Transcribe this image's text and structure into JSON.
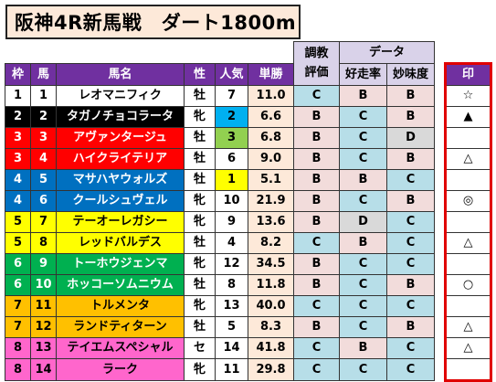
{
  "title": "阪神4R新馬戦　ダート1800m",
  "header": {
    "waku": "枠",
    "uma": "馬",
    "bamei": "馬名",
    "sei": "性",
    "ninki": "人気",
    "tansho": "単勝",
    "chokyo": "調教",
    "hyoka": "評価",
    "data": "データ",
    "kosoritsu": "好走率",
    "myomido": "妙味度",
    "shirushi": "印"
  },
  "rows": [
    {
      "waku": "1",
      "uma": "1",
      "name": "レオマニフィク",
      "sex": "牡",
      "pop": "7",
      "odds": "11.0",
      "chokyo": "C",
      "kosoritsu": "B",
      "myomido": "B",
      "mark": "☆"
    },
    {
      "waku": "2",
      "uma": "2",
      "name": "タガノチョコラータ",
      "sex": "牝",
      "pop": "2",
      "odds": "6.6",
      "chokyo": "B",
      "kosoritsu": "C",
      "myomido": "B",
      "mark": "▲"
    },
    {
      "waku": "3",
      "uma": "3",
      "name": "アヴァンタージュ",
      "sex": "牡",
      "pop": "3",
      "odds": "6.8",
      "chokyo": "B",
      "kosoritsu": "C",
      "myomido": "D",
      "mark": ""
    },
    {
      "waku": "3",
      "uma": "4",
      "name": "ハイクライテリア",
      "sex": "牡",
      "pop": "6",
      "odds": "9.0",
      "chokyo": "B",
      "kosoritsu": "C",
      "myomido": "B",
      "mark": "△"
    },
    {
      "waku": "4",
      "uma": "5",
      "name": "マサハヤウォルズ",
      "sex": "牡",
      "pop": "1",
      "odds": "5.1",
      "chokyo": "B",
      "kosoritsu": "B",
      "myomido": "C",
      "mark": ""
    },
    {
      "waku": "4",
      "uma": "6",
      "name": "クールシュヴェル",
      "sex": "牝",
      "pop": "10",
      "odds": "21.9",
      "chokyo": "B",
      "kosoritsu": "C",
      "myomido": "B",
      "mark": "◎"
    },
    {
      "waku": "5",
      "uma": "7",
      "name": "テーオーレガシー",
      "sex": "牝",
      "pop": "9",
      "odds": "13.6",
      "chokyo": "B",
      "kosoritsu": "D",
      "myomido": "C",
      "mark": ""
    },
    {
      "waku": "5",
      "uma": "8",
      "name": "レッドバルデス",
      "sex": "牡",
      "pop": "4",
      "odds": "8.2",
      "chokyo": "C",
      "kosoritsu": "B",
      "myomido": "C",
      "mark": "△"
    },
    {
      "waku": "6",
      "uma": "9",
      "name": "トーホウジェンマ",
      "sex": "牝",
      "pop": "12",
      "odds": "34.5",
      "chokyo": "B",
      "kosoritsu": "C",
      "myomido": "C",
      "mark": ""
    },
    {
      "waku": "6",
      "uma": "10",
      "name": "ホッコーソムニウム",
      "sex": "牡",
      "pop": "8",
      "odds": "11.8",
      "chokyo": "B",
      "kosoritsu": "C",
      "myomido": "B",
      "mark": "○"
    },
    {
      "waku": "7",
      "uma": "11",
      "name": "トルメンタ",
      "sex": "牝",
      "pop": "13",
      "odds": "40.0",
      "chokyo": "C",
      "kosoritsu": "C",
      "myomido": "C",
      "mark": ""
    },
    {
      "waku": "7",
      "uma": "12",
      "name": "ランドティターン",
      "sex": "牡",
      "pop": "5",
      "odds": "8.3",
      "chokyo": "B",
      "kosoritsu": "C",
      "myomido": "B",
      "mark": "△"
    },
    {
      "waku": "8",
      "uma": "13",
      "name": "テイエムスペシャル",
      "sex": "セ",
      "pop": "14",
      "odds": "41.8",
      "chokyo": "C",
      "kosoritsu": "B",
      "myomido": "C",
      "mark": "△"
    },
    {
      "waku": "8",
      "uma": "14",
      "name": "ラーク",
      "sex": "牝",
      "pop": "11",
      "odds": "29.8",
      "chokyo": "C",
      "kosoritsu": "C",
      "myomido": "C",
      "mark": ""
    }
  ],
  "colors": {
    "waku": {
      "1": "#ffffff",
      "2": "#000000",
      "3": "#ff0000",
      "4": "#0070c0",
      "5": "#ffff00",
      "6": "#00b050",
      "7": "#ffc000",
      "8": "#ff66cc"
    },
    "waku_text": {
      "1": "#000000",
      "2": "#ffffff",
      "3": "#ffffff",
      "4": "#ffffff",
      "5": "#000000",
      "6": "#ffffff",
      "7": "#000000",
      "8": "#000000"
    },
    "pop_highlight": {
      "1": "#ffff00",
      "2": "#00b0f0",
      "3": "#92d050"
    },
    "grade": {
      "B": "#f2dcdb",
      "C": "#b7dee8",
      "D": "#d9d9d9"
    },
    "odds_bg": "#fde9d9",
    "header_bg": "#7030a0",
    "mark_border": "#e00000"
  }
}
